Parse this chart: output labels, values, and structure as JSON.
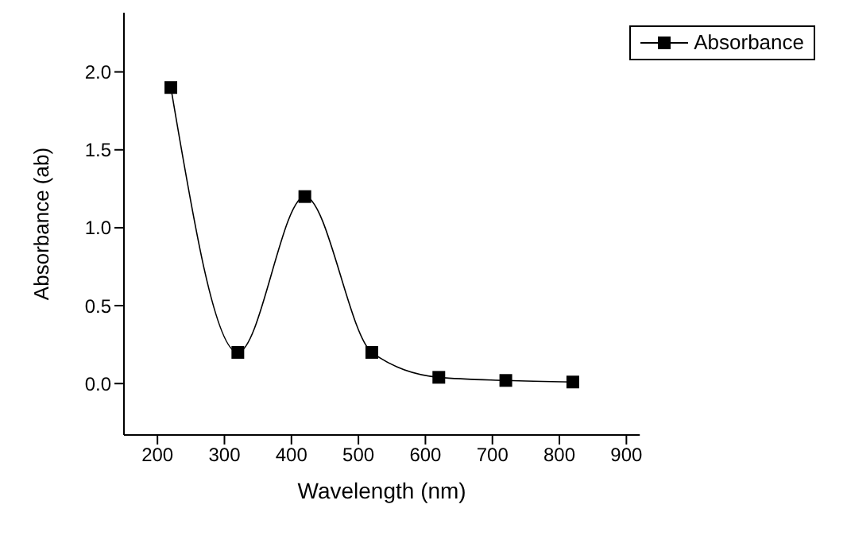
{
  "chart_data": {
    "type": "line",
    "xlabel": "Wavelength (nm)",
    "ylabel": "Absorbance (ab)",
    "x": [
      220,
      320,
      420,
      520,
      620,
      720,
      820
    ],
    "series": [
      {
        "name": "Absorbance",
        "color": "#000000",
        "values": [
          1.9,
          0.2,
          1.2,
          0.2,
          0.04,
          0.02,
          0.01
        ]
      }
    ],
    "xlim": [
      150,
      920
    ],
    "xticks": [
      200,
      300,
      400,
      500,
      600,
      700,
      800,
      900
    ],
    "ylim": [
      -0.33,
      2.38
    ],
    "yticks": [
      {
        "value": 0,
        "label": "0.0"
      },
      {
        "value": 0.5,
        "label": "0.5"
      },
      {
        "value": 1,
        "label": "1.0"
      },
      {
        "value": 1.5,
        "label": "1.5"
      },
      {
        "value": 2,
        "label": "2.0"
      }
    ],
    "grid": false,
    "legend": "top right",
    "marker": "square",
    "line_style": "solid"
  }
}
